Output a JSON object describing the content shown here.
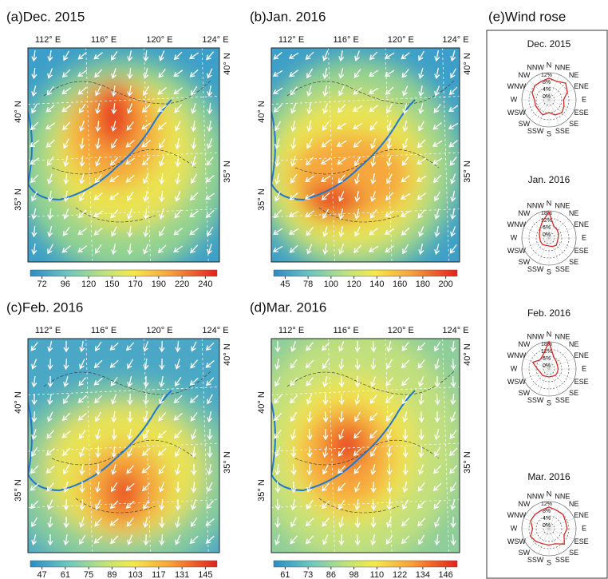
{
  "panels": [
    {
      "title": "(a)Dec. 2015",
      "lon_labels": [
        "112° E",
        "116° E",
        "120° E",
        "124° E"
      ],
      "lat_labels_left": [
        "40° N",
        "35° N"
      ],
      "lat_labels_right": [
        "40° N",
        "35° N"
      ],
      "colorbar_ticks": [
        72,
        96,
        120,
        150,
        170,
        190,
        220,
        240
      ]
    },
    {
      "title": "(b)Jan. 2016",
      "lon_labels": [
        "112° E",
        "116° E",
        "120° E",
        "124° E"
      ],
      "lat_labels_left": [
        "40° N",
        "35° N"
      ],
      "lat_labels_right": [
        "40° N",
        "35° N"
      ],
      "colorbar_ticks": [
        45,
        78,
        100,
        120,
        140,
        160,
        180,
        200
      ]
    },
    {
      "title": "(c)Feb. 2016",
      "lon_labels": [
        "112° E",
        "116° E",
        "120° E",
        "124° E"
      ],
      "lat_labels_left": [
        "40° N",
        "35° N"
      ],
      "lat_labels_right": [
        "40° N",
        "35° N"
      ],
      "colorbar_ticks": [
        47,
        61,
        75,
        89,
        103,
        117,
        131,
        145
      ]
    },
    {
      "title": "(d)Mar. 2016",
      "lon_labels": [
        "112° E",
        "116° E",
        "120° E",
        "124° E"
      ],
      "lat_labels_left": [
        "40° N",
        "35° N"
      ],
      "lat_labels_right": [
        "40° N",
        "35° N"
      ],
      "colorbar_ticks": [
        61,
        73,
        86,
        98,
        110,
        122,
        134,
        146
      ]
    }
  ],
  "wind_rose": {
    "title": "(e)Wind rose",
    "directions": [
      "N",
      "NNE",
      "NE",
      "ENE",
      "E",
      "ESE",
      "SE",
      "SSE",
      "S",
      "SSW",
      "SW",
      "WSW",
      "W",
      "WNW",
      "NW",
      "NNW"
    ],
    "roses": [
      {
        "title": "Dec. 2015",
        "rlim": [
          0,
          12
        ],
        "rticks": [
          {
            "value": 0,
            "label": "0%"
          },
          {
            "value": 4,
            "label": "4%"
          },
          {
            "value": 8,
            "label": "8%"
          },
          {
            "value": 12,
            "label": "12%"
          }
        ],
        "color": "#d62728",
        "values": [
          9,
          8,
          10,
          8,
          5,
          6,
          7,
          6,
          4,
          6,
          5,
          5,
          5,
          7,
          8,
          8
        ]
      },
      {
        "title": "Jan. 2016",
        "rlim": [
          0,
          18
        ],
        "rticks": [
          {
            "value": 0,
            "label": "0%"
          },
          {
            "value": 6,
            "label": "6%"
          },
          {
            "value": 12,
            "label": "12%"
          },
          {
            "value": 18,
            "label": "18%"
          }
        ],
        "color": "#d62728",
        "values": [
          17,
          6,
          5,
          4,
          3,
          3,
          4,
          3,
          2,
          2,
          3,
          3,
          3,
          4,
          6,
          10
        ]
      },
      {
        "title": "Feb. 2016",
        "rlim": [
          0,
          18
        ],
        "rticks": [
          {
            "value": 0,
            "label": "0%"
          },
          {
            "value": 6,
            "label": "6%"
          },
          {
            "value": 12,
            "label": "12%"
          },
          {
            "value": 18,
            "label": "18%"
          }
        ],
        "color": "#d62728",
        "values": [
          18,
          6,
          4,
          3,
          3,
          3,
          3,
          2,
          2,
          2,
          3,
          3,
          5,
          10,
          6,
          8
        ]
      },
      {
        "title": "Mar. 2016",
        "rlim": [
          0,
          12
        ],
        "rticks": [
          {
            "value": 0,
            "label": "0%"
          },
          {
            "value": 4,
            "label": "4%"
          },
          {
            "value": 8,
            "label": "8%"
          },
          {
            "value": 12,
            "label": "12%"
          }
        ],
        "color": "#d62728",
        "values": [
          9,
          8,
          8,
          7,
          7,
          6,
          9,
          6,
          6,
          6,
          7,
          8,
          6,
          8,
          8,
          8
        ]
      }
    ]
  }
}
